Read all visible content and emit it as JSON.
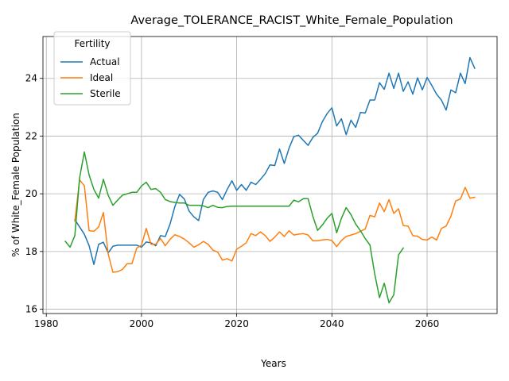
{
  "chart_data": {
    "type": "line",
    "title": "Average_TOLERANCE_RACIST_White_Female_Population",
    "xlabel": "Years",
    "ylabel": "% of White_Female Population",
    "xlim": [
      1979.3,
      2074.7
    ],
    "ylim": [
      15.85,
      25.45
    ],
    "xticks": [
      1980,
      2000,
      2020,
      2040,
      2060
    ],
    "yticks": [
      16,
      18,
      20,
      22,
      24
    ],
    "grid": true,
    "legend": {
      "title": "Fertility",
      "position": "top-left"
    },
    "series": [
      {
        "name": "Actual",
        "color": "#1f77b4",
        "x": [
          1986,
          1987,
          1988,
          1989,
          1990,
          1991,
          1992,
          1993,
          1994,
          1995,
          1996,
          1997,
          1998,
          1999,
          2000,
          2001,
          2002,
          2003,
          2004,
          2005,
          2006,
          2007,
          2008,
          2009,
          2010,
          2011,
          2012,
          2013,
          2014,
          2015,
          2016,
          2017,
          2018,
          2019,
          2020,
          2021,
          2022,
          2023,
          2024,
          2025,
          2026,
          2027,
          2028,
          2029,
          2030,
          2031,
          2032,
          2033,
          2034,
          2035,
          2036,
          2037,
          2038,
          2039,
          2040,
          2041,
          2042,
          2043,
          2044,
          2045,
          2046,
          2047,
          2048,
          2049,
          2050,
          2051,
          2052,
          2053,
          2054,
          2055,
          2056,
          2057,
          2058,
          2059,
          2060,
          2061,
          2062,
          2063,
          2064,
          2065,
          2066,
          2067,
          2068,
          2069,
          2070
        ],
        "values": [
          19.1,
          18.85,
          18.6,
          18.2,
          17.55,
          18.25,
          18.32,
          17.95,
          18.18,
          18.22,
          18.22,
          18.22,
          18.22,
          18.22,
          18.15,
          18.33,
          18.3,
          18.2,
          18.55,
          18.52,
          18.95,
          19.55,
          19.98,
          19.82,
          19.4,
          19.2,
          19.07,
          19.8,
          20.05,
          20.1,
          20.05,
          19.8,
          20.15,
          20.45,
          20.12,
          20.32,
          20.12,
          20.4,
          20.32,
          20.5,
          20.7,
          21.0,
          20.98,
          21.55,
          21.05,
          21.58,
          21.98,
          22.03,
          21.85,
          21.68,
          21.95,
          22.1,
          22.5,
          22.78,
          22.98,
          22.35,
          22.6,
          22.05,
          22.55,
          22.3,
          22.82,
          22.8,
          23.25,
          23.25,
          23.85,
          23.62,
          24.18,
          23.65,
          24.18,
          23.55,
          23.88,
          23.45,
          24.02,
          23.6,
          24.03,
          23.75,
          23.45,
          23.25,
          22.9,
          23.6,
          23.5,
          24.18,
          23.82,
          24.72,
          24.35
        ]
      },
      {
        "name": "Ideal",
        "color": "#ff7f0e",
        "x": [
          1986,
          1987,
          1988,
          1989,
          1990,
          1991,
          1992,
          1993,
          1994,
          1995,
          1996,
          1997,
          1998,
          1999,
          2000,
          2001,
          2002,
          2003,
          2004,
          2005,
          2006,
          2007,
          2008,
          2009,
          2010,
          2011,
          2012,
          2013,
          2014,
          2015,
          2016,
          2017,
          2018,
          2019,
          2020,
          2021,
          2022,
          2023,
          2024,
          2025,
          2026,
          2027,
          2028,
          2029,
          2030,
          2031,
          2032,
          2033,
          2034,
          2035,
          2036,
          2037,
          2038,
          2039,
          2040,
          2041,
          2042,
          2043,
          2044,
          2045,
          2046,
          2047,
          2048,
          2049,
          2050,
          2051,
          2052,
          2053,
          2054,
          2055,
          2056,
          2057,
          2058,
          2059,
          2060,
          2061,
          2062,
          2063,
          2064,
          2065,
          2066,
          2067,
          2068,
          2069,
          2070
        ],
        "values": [
          19.05,
          20.48,
          20.28,
          18.72,
          18.7,
          18.85,
          19.35,
          17.92,
          17.28,
          17.3,
          17.38,
          17.58,
          17.58,
          18.12,
          18.22,
          18.8,
          18.25,
          18.25,
          18.45,
          18.2,
          18.42,
          18.58,
          18.52,
          18.43,
          18.3,
          18.15,
          18.23,
          18.35,
          18.25,
          18.05,
          17.98,
          17.7,
          17.75,
          17.67,
          18.08,
          18.18,
          18.3,
          18.62,
          18.55,
          18.68,
          18.55,
          18.35,
          18.5,
          18.68,
          18.52,
          18.72,
          18.57,
          18.6,
          18.62,
          18.57,
          18.37,
          18.37,
          18.4,
          18.42,
          18.38,
          18.17,
          18.38,
          18.52,
          18.57,
          18.62,
          18.7,
          18.78,
          19.25,
          19.2,
          19.68,
          19.38,
          19.8,
          19.32,
          19.48,
          18.9,
          18.88,
          18.55,
          18.53,
          18.42,
          18.4,
          18.5,
          18.4,
          18.8,
          18.88,
          19.22,
          19.75,
          19.82,
          20.22,
          19.85,
          19.88
        ]
      },
      {
        "name": "Sterile",
        "color": "#2ca02c",
        "x": [
          1984,
          1985,
          1986,
          1987,
          1988,
          1989,
          1990,
          1991,
          1992,
          1993,
          1994,
          1995,
          1996,
          1997,
          1998,
          1999,
          2000,
          2001,
          2002,
          2003,
          2004,
          2005,
          2006,
          2007,
          2008,
          2009,
          2010,
          2011,
          2012,
          2013,
          2014,
          2015,
          2016,
          2017,
          2018,
          2019,
          2020,
          2021,
          2022,
          2023,
          2024,
          2025,
          2026,
          2027,
          2028,
          2029,
          2030,
          2031,
          2032,
          2033,
          2034,
          2035,
          2036,
          2037,
          2038,
          2039,
          2040,
          2041,
          2042,
          2043,
          2044,
          2045,
          2046,
          2047,
          2048,
          2049,
          2050,
          2051,
          2052,
          2053,
          2054,
          2055
        ],
        "values": [
          18.35,
          18.15,
          18.55,
          20.55,
          21.45,
          20.65,
          20.15,
          19.85,
          20.5,
          19.95,
          19.6,
          19.78,
          19.95,
          20.0,
          20.05,
          20.05,
          20.27,
          20.4,
          20.15,
          20.18,
          20.05,
          19.8,
          19.73,
          19.7,
          19.68,
          19.68,
          19.6,
          19.6,
          19.6,
          19.58,
          19.52,
          19.6,
          19.53,
          19.52,
          19.56,
          19.57,
          19.57,
          19.57,
          19.57,
          19.57,
          19.57,
          19.57,
          19.57,
          19.57,
          19.57,
          19.57,
          19.57,
          19.57,
          19.78,
          19.72,
          19.83,
          19.83,
          19.22,
          18.73,
          18.92,
          19.15,
          19.32,
          18.65,
          19.15,
          19.52,
          19.28,
          18.95,
          18.72,
          18.45,
          18.22,
          17.22,
          16.4,
          16.9,
          16.22,
          16.5,
          17.88,
          18.12
        ]
      }
    ]
  }
}
